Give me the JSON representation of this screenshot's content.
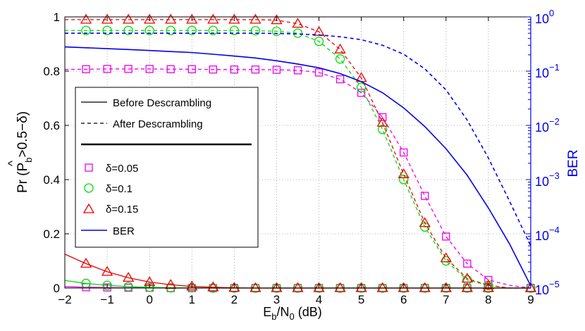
{
  "chart_data": {
    "type": "line",
    "xlabel": {
      "main": "E",
      "sub1": "b",
      "mid": "/N",
      "sub2": "0",
      "tail": " (dB)"
    },
    "ylabel_left": {
      "pre": "Pr (",
      "hat_letter": "P",
      "hat": "^",
      "sub": "b",
      "post": ">0.5−δ)"
    },
    "ylabel_right": "BER",
    "xlim": [
      -2,
      9
    ],
    "ylim_left": [
      0,
      1
    ],
    "ylim_right_log10": [
      -5,
      0
    ],
    "x_ticks": [
      "−2",
      "−1",
      "0",
      "1",
      "2",
      "3",
      "4",
      "5",
      "6",
      "7",
      "8",
      "9"
    ],
    "y_ticks_left": [
      "0",
      "0.2",
      "0.4",
      "0.6",
      "0.8",
      "1"
    ],
    "y_ticks_right": [
      {
        "base": "10",
        "exp": "0"
      },
      {
        "base": "10",
        "exp": "−1"
      },
      {
        "base": "10",
        "exp": "−2"
      },
      {
        "base": "10",
        "exp": "−3"
      },
      {
        "base": "10",
        "exp": "−4"
      },
      {
        "base": "10",
        "exp": "−5"
      }
    ],
    "grid": true,
    "legend": {
      "placement": "center-left",
      "line_entries": [
        {
          "label": "Before Descrambling",
          "style": "solid"
        },
        {
          "label": "After Descrambling",
          "style": "dashed"
        }
      ],
      "marker_entries": [
        {
          "label": "δ=0.05",
          "marker": "square",
          "color": "#ee00ee"
        },
        {
          "label": "δ=0.1",
          "marker": "circle",
          "color": "#00dd00"
        },
        {
          "label": "δ=0.15",
          "marker": "triangle",
          "color": "#ee0000"
        }
      ],
      "ber_entry": {
        "label": "BER",
        "color": "#0000ee"
      }
    },
    "x": [
      -2,
      -1.5,
      -1,
      -0.5,
      0,
      0.5,
      1,
      1.5,
      2,
      2.5,
      3,
      3.5,
      4,
      4.5,
      5,
      5.5,
      6,
      6.5,
      7,
      7.5,
      8,
      8.5,
      9
    ],
    "marker_x": [
      -1.5,
      -1,
      -0.5,
      0,
      0.5,
      1,
      1.5,
      2,
      2.5,
      3,
      3.5,
      4,
      4.5,
      5,
      5.5,
      6,
      6.5,
      7,
      7.5,
      8,
      9
    ],
    "series": [
      {
        "name": "δ=0.05 after descrambling",
        "axis": "left",
        "color": "#ee00ee",
        "style": "dashed",
        "marker": "square",
        "values": [
          0.806,
          0.807,
          0.808,
          0.808,
          0.808,
          0.807,
          0.807,
          0.806,
          0.806,
          0.806,
          0.805,
          0.803,
          0.795,
          0.77,
          0.72,
          0.63,
          0.5,
          0.34,
          0.19,
          0.09,
          0.03,
          0.01,
          0.0
        ]
      },
      {
        "name": "δ=0.1 after descrambling",
        "axis": "left",
        "color": "#00dd00",
        "style": "dashed",
        "marker": "circle",
        "values": [
          0.95,
          0.95,
          0.95,
          0.95,
          0.95,
          0.95,
          0.95,
          0.95,
          0.95,
          0.949,
          0.947,
          0.94,
          0.91,
          0.845,
          0.74,
          0.585,
          0.4,
          0.225,
          0.1,
          0.03,
          0.01,
          0.0,
          0.0
        ]
      },
      {
        "name": "δ=0.15 after descrambling",
        "axis": "left",
        "color": "#ee0000",
        "style": "dashed",
        "marker": "triangle",
        "values": [
          0.99,
          0.99,
          0.99,
          0.99,
          0.99,
          0.99,
          0.99,
          0.99,
          0.99,
          0.99,
          0.988,
          0.975,
          0.945,
          0.88,
          0.775,
          0.61,
          0.42,
          0.24,
          0.11,
          0.035,
          0.01,
          0.0,
          0.0
        ]
      },
      {
        "name": "δ=0.05 before descrambling",
        "axis": "left",
        "color": "#ee00ee",
        "style": "solid",
        "marker": "square",
        "values": [
          0.005,
          0.003,
          0.002,
          0.001,
          0.001,
          0.0,
          0.0,
          0.0,
          0.0,
          0.0,
          0.0,
          0.0,
          0.0,
          0.0,
          0.0,
          0.0,
          0.0,
          0.0,
          0.0,
          0.0,
          0.0,
          0.0,
          0.0
        ]
      },
      {
        "name": "δ=0.1 before descrambling",
        "axis": "left",
        "color": "#00dd00",
        "style": "solid",
        "marker": "circle",
        "values": [
          0.028,
          0.017,
          0.01,
          0.005,
          0.003,
          0.001,
          0.001,
          0.0,
          0.0,
          0.0,
          0.0,
          0.0,
          0.0,
          0.0,
          0.0,
          0.0,
          0.0,
          0.0,
          0.0,
          0.0,
          0.0,
          0.0,
          0.0
        ]
      },
      {
        "name": "δ=0.15 before descrambling",
        "axis": "left",
        "color": "#ee0000",
        "style": "solid",
        "marker": "triangle",
        "values": [
          0.125,
          0.09,
          0.06,
          0.038,
          0.022,
          0.012,
          0.006,
          0.003,
          0.001,
          0.0,
          0.0,
          0.0,
          0.0,
          0.0,
          0.0,
          0.0,
          0.0,
          0.0,
          0.0,
          0.0,
          0.0,
          0.0,
          0.0
        ]
      },
      {
        "name": "BER before descrambling",
        "axis": "right",
        "color": "#0000ee",
        "style": "solid",
        "marker": "none",
        "values": [
          0.28,
          0.27,
          0.26,
          0.25,
          0.24,
          0.23,
          0.22,
          0.205,
          0.19,
          0.175,
          0.155,
          0.135,
          0.115,
          0.09,
          0.064,
          0.04,
          0.021,
          0.0095,
          0.0037,
          0.0012,
          0.0003,
          6.5e-05,
          1.1e-05
        ]
      },
      {
        "name": "BER after descrambling",
        "axis": "right",
        "color": "#0000ee",
        "style": "dashed",
        "marker": "none",
        "values": [
          0.5,
          0.5,
          0.5,
          0.5,
          0.5,
          0.5,
          0.5,
          0.5,
          0.5,
          0.5,
          0.495,
          0.485,
          0.465,
          0.43,
          0.38,
          0.3,
          0.205,
          0.11,
          0.045,
          0.0125,
          0.0025,
          0.0004,
          6e-05
        ]
      }
    ]
  }
}
